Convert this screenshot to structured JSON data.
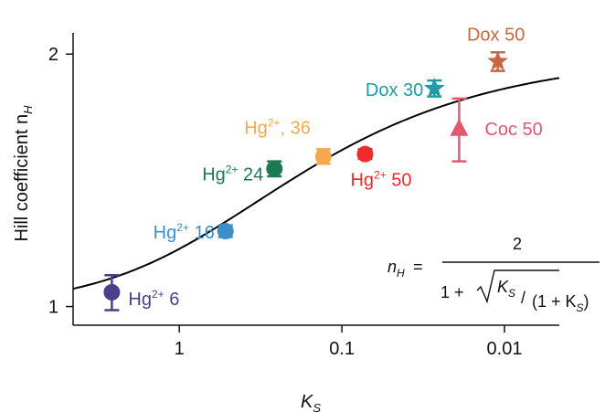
{
  "chart_data": {
    "type": "scatter",
    "x_scale": "log (reversed)",
    "y_scale": "log",
    "xlabel": "K",
    "xlabel_sub": "S",
    "ylabel": "Hill coefficient n",
    "ylabel_sub": "H",
    "xlim": [
      4.5,
      0.0046
    ],
    "ylim": [
      0.95,
      2.12
    ],
    "x_ticks": [
      {
        "value": 1,
        "label": "1"
      },
      {
        "value": 0.1,
        "label": "0.1"
      },
      {
        "value": 0.01,
        "label": "0.01"
      }
    ],
    "y_ticks": [
      {
        "value": 1,
        "label": "1"
      },
      {
        "value": 2,
        "label": "2"
      }
    ],
    "curve": {
      "formula": "nH = 2 / (1 + sqrt(KS / (1 + KS)))",
      "color": "#000000",
      "x_range": [
        4.5,
        0.0046
      ]
    },
    "formula_text": {
      "lhs": "n",
      "lhs_sub": "H",
      "equals": "=",
      "numerator": "2",
      "den_prefix": "1 +",
      "k": "K",
      "k_sub": "S",
      "den_tail": "(1 + K",
      "den_tail_sub": "S",
      "den_close": ")"
    },
    "points": [
      {
        "label": "Hg",
        "sup": "2+",
        "suffix": " 6",
        "x": 2.6,
        "y": 1.04,
        "err": 0.05,
        "marker": "circle",
        "color": "#4B3F8B"
      },
      {
        "label": "Hg",
        "sup": "2+",
        "suffix": " 16",
        "x": 0.52,
        "y": 1.23,
        "err": 0.02,
        "marker": "circle",
        "color": "#3C8FCB"
      },
      {
        "label": "Hg",
        "sup": "2+",
        "suffix": " 24",
        "x": 0.26,
        "y": 1.46,
        "err": 0.03,
        "marker": "circle",
        "color": "#1B7A50"
      },
      {
        "label": "Hg",
        "sup": "2+",
        "suffix": ", 36",
        "x": 0.13,
        "y": 1.51,
        "err": 0.03,
        "marker": "circle",
        "color": "#F5A84D"
      },
      {
        "label": "Hg",
        "sup": "2+",
        "suffix": " 50",
        "x": 0.072,
        "y": 1.52,
        "err": 0.02,
        "marker": "circle",
        "color": "#EE2A2A"
      },
      {
        "label": "Coc 50",
        "sup": "",
        "suffix": "",
        "x": 0.019,
        "y": 1.63,
        "err": 0.14,
        "marker": "triangle",
        "color": "#E05A6E"
      },
      {
        "label": "Dox 30",
        "sup": "",
        "suffix": "",
        "x": 0.027,
        "y": 1.82,
        "err": 0.04,
        "marker": "star",
        "color": "#1E9BA6"
      },
      {
        "label": "Dox 50",
        "sup": "",
        "suffix": "",
        "x": 0.011,
        "y": 1.96,
        "err": 0.05,
        "marker": "star",
        "color": "#C46844"
      }
    ]
  }
}
